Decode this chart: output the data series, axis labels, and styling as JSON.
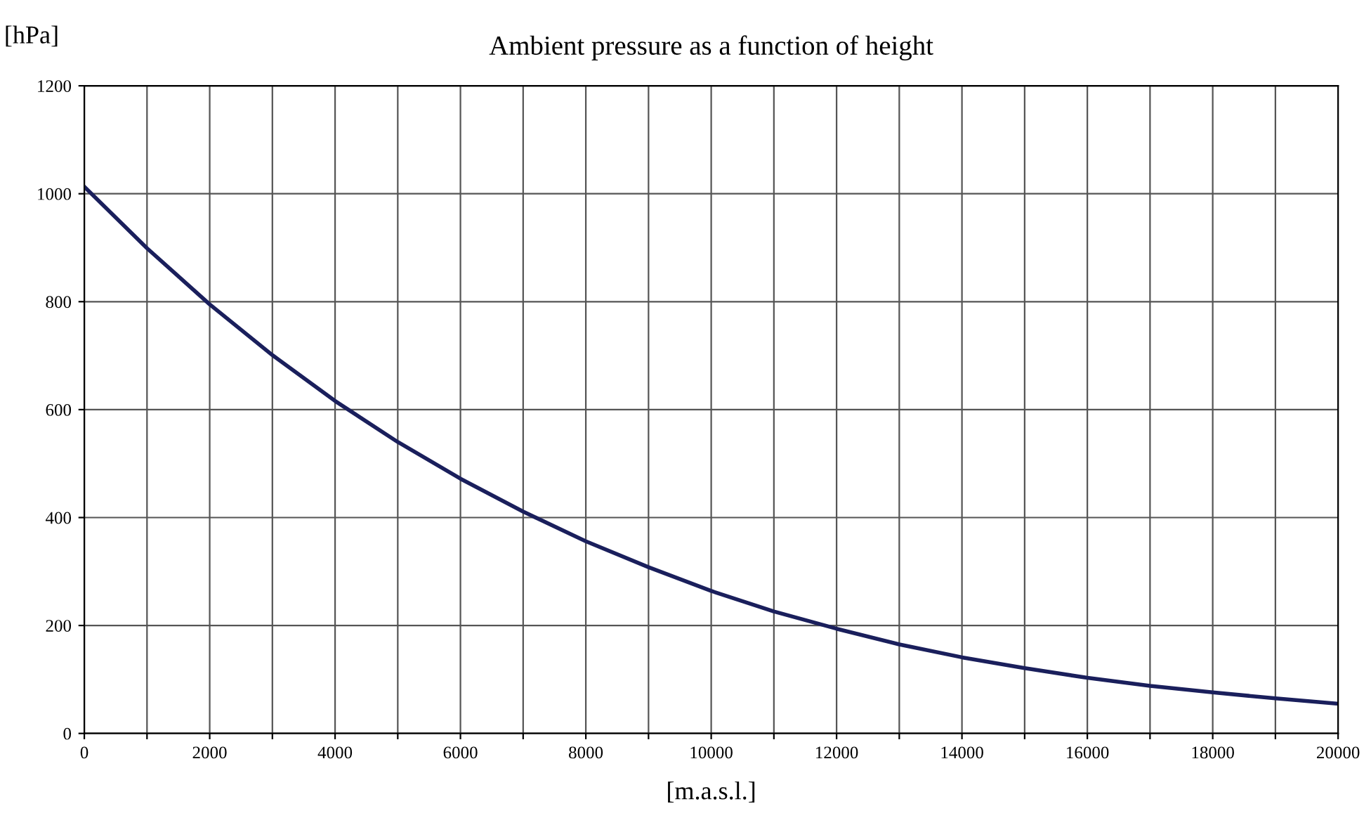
{
  "chart_data": {
    "type": "line",
    "title": "Ambient pressure as a function of height",
    "xlabel": "[m.a.s.l.]",
    "ylabel": "[hPa]",
    "x": [
      0,
      1000,
      2000,
      3000,
      4000,
      5000,
      6000,
      7000,
      8000,
      9000,
      10000,
      11000,
      12000,
      13000,
      14000,
      15000,
      16000,
      17000,
      18000,
      19000,
      20000
    ],
    "series": [
      {
        "color": "#1a1f5c",
        "values": [
          1013,
          899,
          795,
          701,
          616,
          540,
          472,
          411,
          356,
          308,
          264,
          226,
          194,
          165,
          141,
          121,
          103,
          88,
          76,
          65,
          55
        ]
      }
    ],
    "xlim": [
      0,
      20000
    ],
    "ylim": [
      0,
      1200
    ],
    "xticks": [
      0,
      {
        "value": 1000,
        "label": null
      },
      2000,
      {
        "value": 3000,
        "label": null
      },
      4000,
      {
        "value": 5000,
        "label": null
      },
      6000,
      {
        "value": 7000,
        "label": null
      },
      8000,
      {
        "value": 9000,
        "label": null
      },
      10000,
      {
        "value": 11000,
        "label": null
      },
      12000,
      {
        "value": 13000,
        "label": null
      },
      14000,
      {
        "value": 15000,
        "label": null
      },
      16000,
      {
        "value": 17000,
        "label": null
      },
      18000,
      {
        "value": 19000,
        "label": null
      },
      20000
    ],
    "yticks": [
      0,
      200,
      400,
      600,
      800,
      1000,
      1200
    ],
    "grid": true,
    "legend": false,
    "marker": "none",
    "line_style": "solid"
  }
}
